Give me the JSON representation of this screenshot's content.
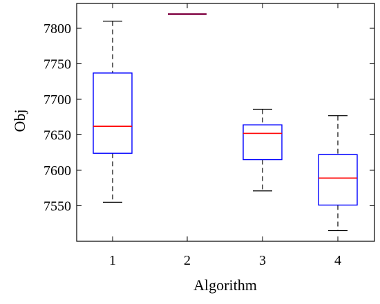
{
  "chart_data": {
    "type": "boxplot",
    "title": "",
    "xlabel": "Algorithm",
    "ylabel": "Obj",
    "categories": [
      "1",
      "2",
      "3",
      "4"
    ],
    "y_ticks": [
      "7550",
      "7600",
      "7650",
      "7700",
      "7750",
      "7800"
    ],
    "y_tick_values": [
      7550,
      7600,
      7650,
      7700,
      7750,
      7800
    ],
    "ylim": [
      7500,
      7835
    ],
    "grid": false,
    "legend": "none",
    "boxes": [
      {
        "category": "1",
        "whisker_low": 7555,
        "q1": 7624,
        "median": 7662,
        "q3": 7737,
        "whisker_high": 7810
      },
      {
        "category": "2",
        "whisker_low": 7820,
        "q1": 7820,
        "median": 7820,
        "q3": 7820,
        "whisker_high": 7820
      },
      {
        "category": "3",
        "whisker_low": 7571,
        "q1": 7615,
        "median": 7652,
        "q3": 7664,
        "whisker_high": 7686
      },
      {
        "category": "4",
        "whisker_low": 7515,
        "q1": 7551,
        "median": 7589,
        "q3": 7622,
        "whisker_high": 7677
      }
    ],
    "colors": {
      "box": "#0000ff",
      "median": "#ff0000",
      "whisker": "#000000",
      "degenerate": "#7f0040"
    }
  }
}
